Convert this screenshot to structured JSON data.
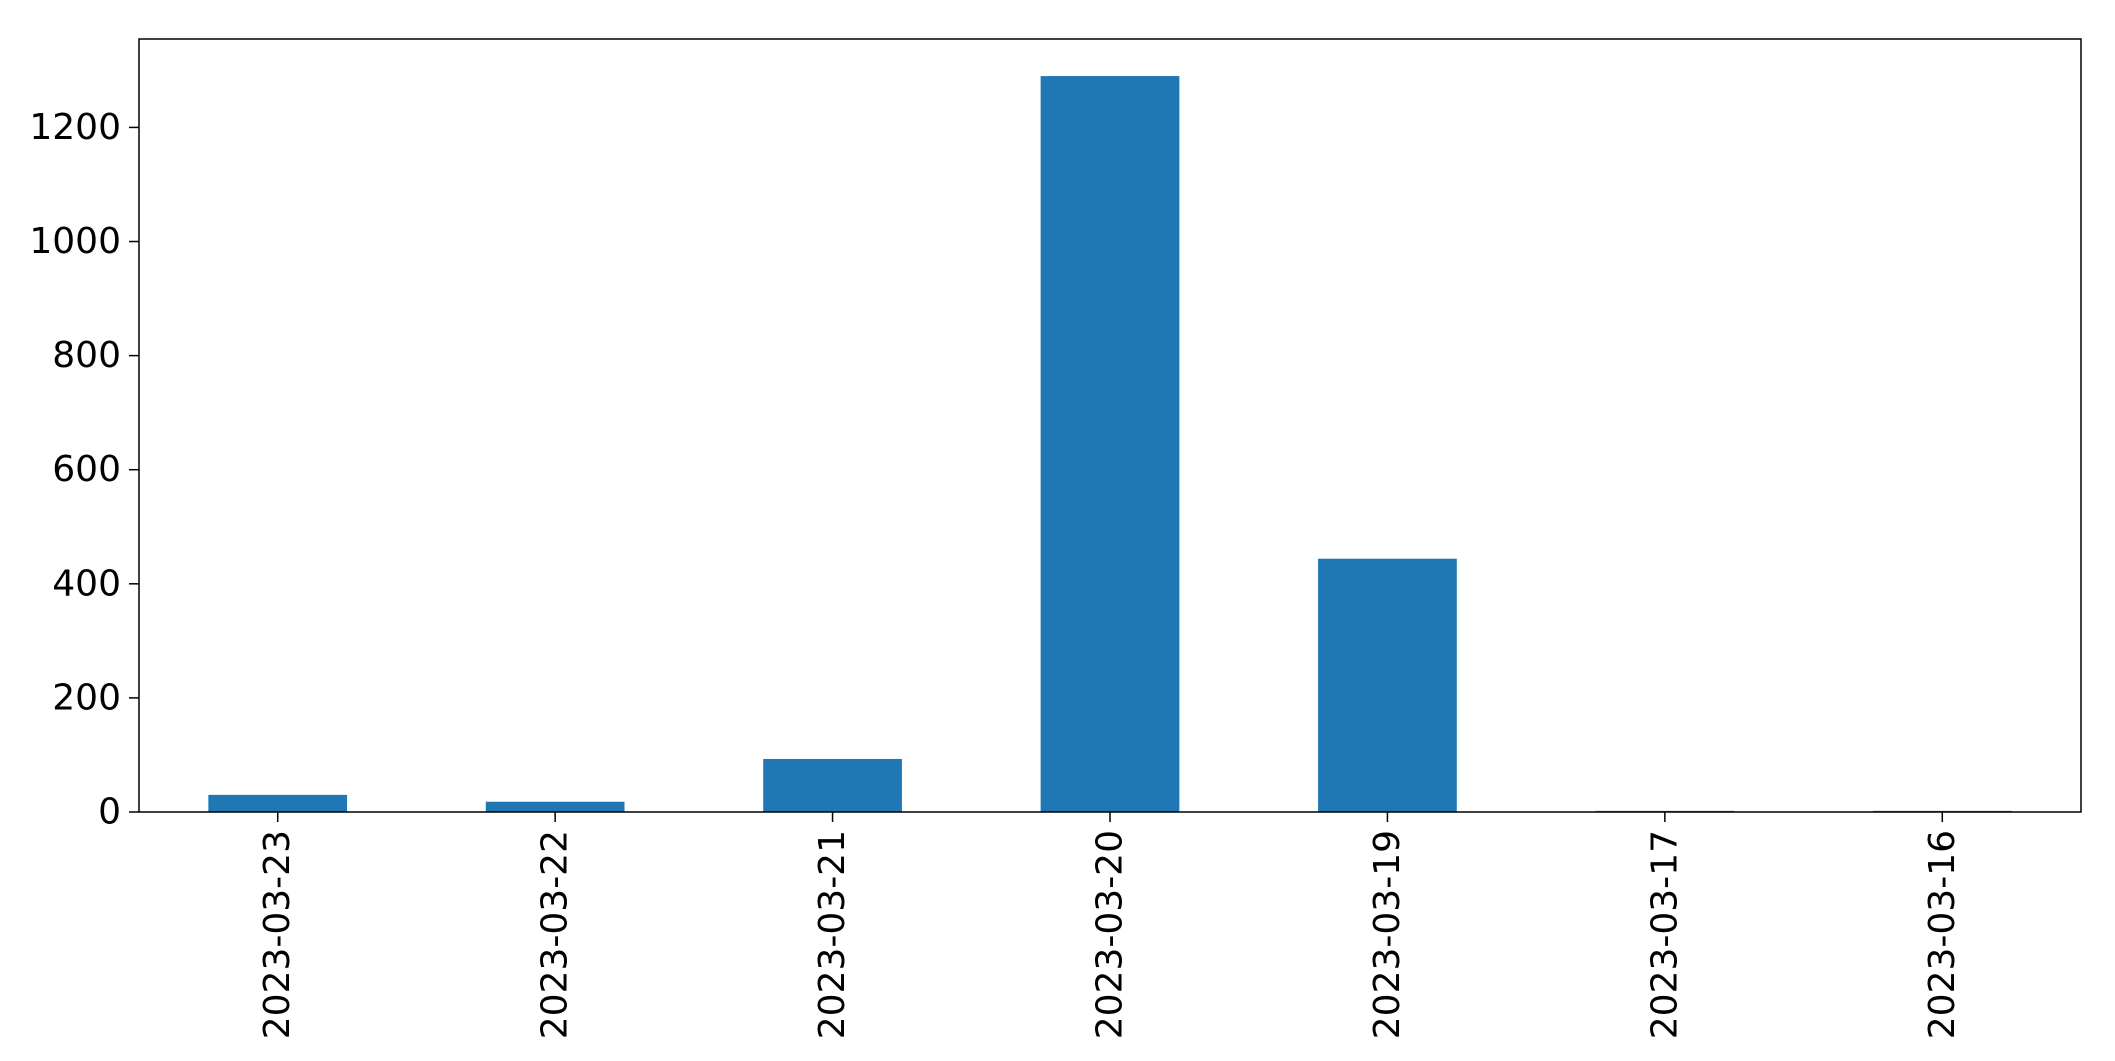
{
  "chart_data": {
    "type": "bar",
    "title": "",
    "xlabel": "",
    "ylabel": "",
    "categories": [
      "2023-03-23",
      "2023-03-22",
      "2023-03-21",
      "2023-03-20",
      "2023-03-19",
      "2023-03-17",
      "2023-03-16"
    ],
    "values": [
      30,
      18,
      93,
      1290,
      444,
      2,
      2
    ],
    "ylim": [
      0,
      1355
    ],
    "yticks": [
      0,
      200,
      400,
      600,
      800,
      1000,
      1200
    ],
    "ytick_labels": [
      "0",
      "200",
      "400",
      "600",
      "800",
      "1000",
      "1200"
    ],
    "bar_color": "#1f77b4",
    "grid": false,
    "legend": "none"
  }
}
